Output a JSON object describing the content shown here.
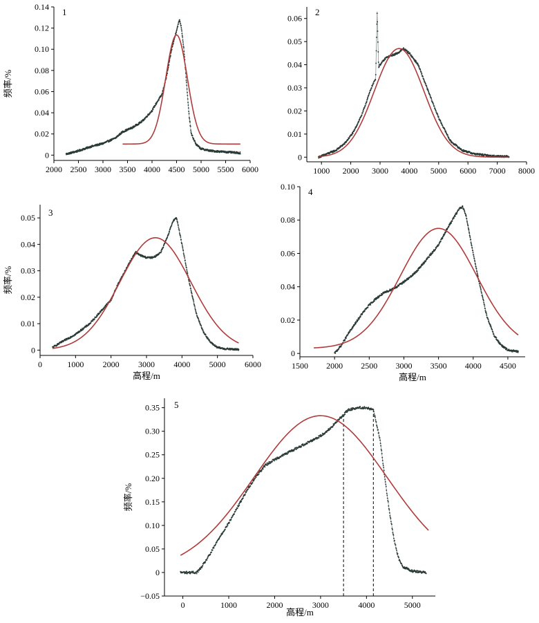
{
  "figure": {
    "background": "#ffffff"
  },
  "colors": {
    "observed": "#2a3a36",
    "fit": "#b03a3a",
    "axis": "#000000"
  },
  "chart_data": [
    {
      "type": "scatter",
      "label": "1",
      "xlabel": "",
      "ylabel": "频率/%",
      "xlim": [
        2000,
        6000
      ],
      "ylim": [
        -0.005,
        0.14
      ],
      "xticks": [
        2000,
        2500,
        3000,
        3500,
        4000,
        4500,
        5000,
        5500,
        6000
      ],
      "yticks": [
        0,
        0.02,
        0.04,
        0.06,
        0.08,
        0.1,
        0.12,
        0.14
      ],
      "ytick_labels": [
        "0",
        "0.02",
        "0.04",
        "0.06",
        "0.08",
        "0.10",
        "0.12",
        "0.14"
      ],
      "series": [
        {
          "role": "observed",
          "style": "scatter",
          "x": [
            2250,
            2500,
            2750,
            3000,
            3250,
            3400,
            3600,
            3800,
            4000,
            4100,
            4200,
            4300,
            4400,
            4500,
            4560,
            4600,
            4650,
            4700,
            4750,
            4800,
            4900,
            5000,
            5200,
            5500,
            5800
          ],
          "y": [
            0.001,
            0.004,
            0.008,
            0.011,
            0.016,
            0.022,
            0.026,
            0.032,
            0.042,
            0.05,
            0.057,
            0.075,
            0.1,
            0.118,
            0.128,
            0.12,
            0.1,
            0.07,
            0.04,
            0.02,
            0.01,
            0.006,
            0.004,
            0.003,
            0.002
          ]
        },
        {
          "role": "fit",
          "style": "line",
          "curve": "gaussian",
          "mu": 4500,
          "sigma": 220,
          "amplitude": 0.103,
          "offset": 0.0105
        }
      ]
    },
    {
      "type": "scatter",
      "label": "2",
      "xlabel": "",
      "ylabel": "",
      "xlim": [
        500,
        8000
      ],
      "ylim": [
        -0.002,
        0.065
      ],
      "xticks": [
        1000,
        2000,
        3000,
        4000,
        5000,
        6000,
        7000,
        8000
      ],
      "yticks": [
        0,
        0.01,
        0.02,
        0.03,
        0.04,
        0.05,
        0.06
      ],
      "ytick_labels": [
        "0",
        "0.01",
        "0.02",
        "0.03",
        "0.04",
        "0.05",
        "0.06"
      ],
      "series": [
        {
          "role": "observed",
          "style": "scatter",
          "x": [
            900,
            1200,
            1500,
            1800,
            2100,
            2400,
            2700,
            2850,
            2900,
            2950,
            3000,
            3200,
            3400,
            3600,
            3800,
            3900,
            4000,
            4300,
            4600,
            5000,
            5400,
            5800,
            6200,
            6800,
            7400
          ],
          "y": [
            0.0,
            0.0015,
            0.003,
            0.006,
            0.011,
            0.019,
            0.03,
            0.034,
            0.063,
            0.039,
            0.04,
            0.043,
            0.044,
            0.045,
            0.047,
            0.046,
            0.045,
            0.04,
            0.03,
            0.017,
            0.007,
            0.003,
            0.0015,
            0.0005,
            0.0003
          ]
        },
        {
          "role": "fit",
          "style": "line",
          "curve": "gaussian",
          "mu": 3650,
          "sigma": 850,
          "amplitude": 0.047,
          "offset": 0,
          "xmin": 900,
          "xmax": 7400
        }
      ]
    },
    {
      "type": "scatter",
      "label": "3",
      "xlabel": "高程/m",
      "ylabel": "频率/%",
      "xlim": [
        0,
        6000
      ],
      "ylim": [
        -0.002,
        0.055
      ],
      "xticks": [
        0,
        1000,
        2000,
        3000,
        4000,
        5000,
        6000
      ],
      "yticks": [
        0,
        0.01,
        0.02,
        0.03,
        0.04,
        0.05
      ],
      "ytick_labels": [
        "0",
        "0.01",
        "0.02",
        "0.03",
        "0.04",
        "0.05"
      ],
      "series": [
        {
          "role": "observed",
          "style": "scatter",
          "x": [
            350,
            600,
            1000,
            1400,
            1800,
            2000,
            2200,
            2400,
            2600,
            2700,
            2800,
            3000,
            3200,
            3400,
            3600,
            3750,
            3850,
            4000,
            4200,
            4400,
            4600,
            4800,
            5000,
            5200,
            5600
          ],
          "y": [
            0.001,
            0.003,
            0.006,
            0.01,
            0.016,
            0.019,
            0.025,
            0.03,
            0.035,
            0.037,
            0.036,
            0.035,
            0.035,
            0.037,
            0.043,
            0.049,
            0.05,
            0.04,
            0.026,
            0.014,
            0.007,
            0.003,
            0.001,
            0.0005,
            0.0002
          ]
        },
        {
          "role": "fit",
          "style": "line",
          "curve": "gaussian",
          "mu": 3250,
          "sigma": 1000,
          "amplitude": 0.0425,
          "offset": 0,
          "xmin": 350,
          "xmax": 5600
        }
      ]
    },
    {
      "type": "scatter",
      "label": "4",
      "xlabel": "高程/m",
      "ylabel": "",
      "xlim": [
        1500,
        4750
      ],
      "ylim": [
        -0.002,
        0.1
      ],
      "xticks": [
        1500,
        2000,
        2500,
        3000,
        3500,
        4000,
        4500
      ],
      "yticks": [
        0,
        0.02,
        0.04,
        0.06,
        0.08,
        0.1
      ],
      "ytick_labels": [
        "0",
        "0.02",
        "0.04",
        "0.06",
        "0.08",
        "0.10"
      ],
      "series": [
        {
          "role": "observed",
          "style": "scatter",
          "x": [
            2000,
            2100,
            2200,
            2300,
            2400,
            2500,
            2600,
            2700,
            2800,
            2900,
            3000,
            3100,
            3200,
            3300,
            3400,
            3500,
            3600,
            3700,
            3800,
            3850,
            3900,
            4000,
            4100,
            4200,
            4300,
            4400,
            4500,
            4650
          ],
          "y": [
            0.0,
            0.005,
            0.012,
            0.018,
            0.024,
            0.029,
            0.033,
            0.036,
            0.038,
            0.04,
            0.043,
            0.046,
            0.05,
            0.055,
            0.06,
            0.065,
            0.073,
            0.08,
            0.087,
            0.088,
            0.082,
            0.06,
            0.04,
            0.022,
            0.011,
            0.005,
            0.002,
            0.001
          ]
        },
        {
          "role": "fit",
          "style": "line",
          "curve": "gaussian",
          "mu": 3500,
          "sigma": 550,
          "amplitude": 0.072,
          "offset": 0.003,
          "xmin": 1700,
          "xmax": 4650
        }
      ]
    },
    {
      "type": "scatter",
      "label": "5",
      "xlabel": "高程/m",
      "ylabel": "频率/%",
      "xlim": [
        -400,
        5500
      ],
      "ylim": [
        -0.05,
        0.37
      ],
      "xticks": [
        0,
        1000,
        2000,
        3000,
        4000,
        5000
      ],
      "yticks": [
        -0.05,
        0,
        0.05,
        0.1,
        0.15,
        0.2,
        0.25,
        0.3,
        0.35
      ],
      "ytick_labels": [
        "−0.05",
        "0",
        "0.05",
        "0.10",
        "0.15",
        "0.20",
        "0.25",
        "0.30",
        "0.35"
      ],
      "dashed_vlines": [
        3500,
        4150
      ],
      "series": [
        {
          "role": "observed",
          "style": "scatter",
          "x": [
            -50,
            300,
            400,
            600,
            800,
            1000,
            1200,
            1400,
            1600,
            1800,
            2000,
            2200,
            2400,
            2600,
            2800,
            3000,
            3200,
            3400,
            3600,
            3800,
            4000,
            4150,
            4300,
            4400,
            4500,
            4600,
            4700,
            4800,
            5000,
            5300
          ],
          "y": [
            0.0,
            0.0,
            0.01,
            0.04,
            0.075,
            0.105,
            0.14,
            0.175,
            0.205,
            0.228,
            0.24,
            0.25,
            0.26,
            0.27,
            0.28,
            0.29,
            0.305,
            0.325,
            0.345,
            0.35,
            0.35,
            0.345,
            0.28,
            0.2,
            0.13,
            0.07,
            0.03,
            0.012,
            0.003,
            0.0
          ]
        },
        {
          "role": "fit",
          "style": "line",
          "curve": "gaussian",
          "mu": 3000,
          "sigma": 1450,
          "amplitude": 0.333,
          "offset": 0,
          "xmin": -50,
          "xmax": 5350
        }
      ]
    }
  ]
}
